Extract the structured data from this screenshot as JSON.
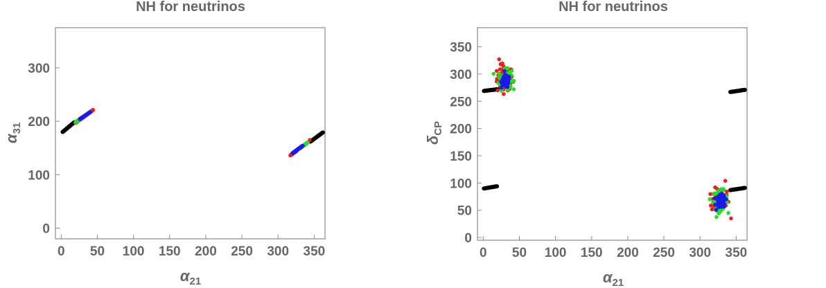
{
  "colors": {
    "black": "#000000",
    "red": "#ee1c1c",
    "green": "#22dd22",
    "blue": "#1a1aee"
  },
  "chart_data": [
    {
      "type": "scatter",
      "title": "NH for neutrinos",
      "xlabel_base": "α",
      "xlabel_sub": "21",
      "ylabel_base": "α",
      "ylabel_sub": "31",
      "xlim": [
        -8,
        365
      ],
      "ylim": [
        -20,
        375
      ],
      "xticks": [
        0,
        50,
        100,
        150,
        200,
        250,
        300,
        350
      ],
      "yticks": [
        0,
        100,
        200,
        300
      ],
      "series": [
        {
          "color": "black",
          "kind": "line",
          "segments": [
            [
              [
                2,
                180
              ],
              [
                18,
                198
              ]
            ],
            [
              [
                345,
                162
              ],
              [
                362,
                179
              ]
            ]
          ]
        },
        {
          "color": "red",
          "kind": "line",
          "segments": [
            [
              [
                20,
                197
              ],
              [
                44,
                221
              ]
            ],
            [
              [
                318,
                137
              ],
              [
                326,
                145
              ]
            ]
          ]
        },
        {
          "color": "green",
          "kind": "line",
          "segments": [
            [
              [
                20,
                198
              ],
              [
                28,
                206
              ]
            ],
            [
              [
                330,
                149
              ],
              [
                341,
                160
              ]
            ]
          ]
        },
        {
          "color": "blue",
          "kind": "line",
          "segments": [
            [
              [
                26,
                204
              ],
              [
                40,
                217
              ]
            ],
            [
              [
                320,
                140
              ],
              [
                334,
                154
              ]
            ]
          ]
        },
        {
          "color": "red",
          "kind": "points",
          "points": [
            [
              344,
              165
            ],
            [
              317,
              136
            ]
          ]
        }
      ],
      "grid": false
    },
    {
      "type": "scatter",
      "title": "NH for neutrinos",
      "xlabel_base": "α",
      "xlabel_sub": "21",
      "ylabel_base": "δ",
      "ylabel_sub": "CP",
      "xlim": [
        -8,
        365
      ],
      "ylim": [
        -5,
        385
      ],
      "xticks": [
        0,
        50,
        100,
        150,
        200,
        250,
        300,
        350
      ],
      "yticks": [
        0,
        50,
        100,
        150,
        200,
        250,
        300,
        350
      ],
      "series": [
        {
          "color": "black",
          "kind": "line",
          "segments": [
            [
              [
                1,
                269
              ],
              [
                20,
                272
              ]
            ],
            [
              [
                1,
                90
              ],
              [
                19,
                94
              ]
            ],
            [
              [
                342,
                267
              ],
              [
                362,
                271
              ]
            ],
            [
              [
                342,
                87
              ],
              [
                362,
                91
              ]
            ]
          ]
        },
        {
          "color": "red",
          "kind": "cloud",
          "clusters": [
            {
              "cx": 30,
              "cy": 292,
              "rx": 11,
              "ry": 22
            },
            {
              "cx": 328,
              "cy": 68,
              "rx": 12,
              "ry": 22
            }
          ]
        },
        {
          "color": "green",
          "kind": "cloud",
          "clusters": [
            {
              "cx": 30,
              "cy": 290,
              "rx": 9,
              "ry": 18
            },
            {
              "cx": 328,
              "cy": 68,
              "rx": 10,
              "ry": 18
            }
          ]
        },
        {
          "color": "blue",
          "kind": "cloud",
          "clusters": [
            {
              "cx": 31,
              "cy": 286,
              "rx": 6,
              "ry": 12
            },
            {
              "cx": 329,
              "cy": 66,
              "rx": 6,
              "ry": 12
            }
          ]
        },
        {
          "color": "red",
          "kind": "points",
          "points": [
            [
              22,
              327
            ],
            [
              24,
              318
            ],
            [
              343,
              35
            ],
            [
              335,
              104
            ],
            [
              20,
              270
            ]
          ]
        }
      ],
      "grid": false
    }
  ]
}
